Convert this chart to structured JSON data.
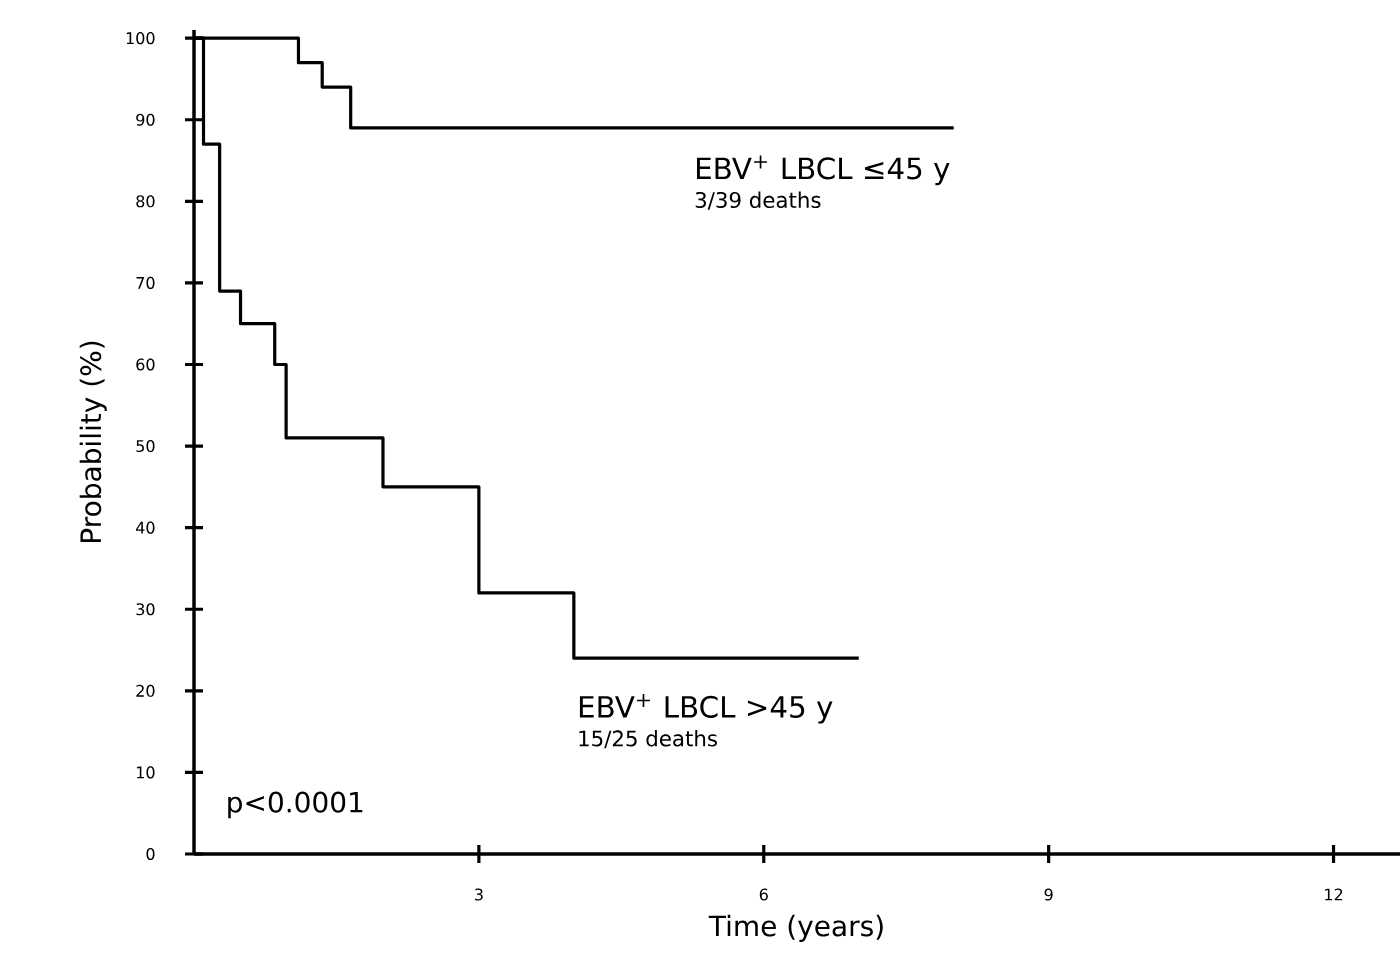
{
  "chart_data": {
    "type": "step",
    "xlabel": "Time (years)",
    "ylabel": "Probability (%)",
    "xlim": [
      0,
      12.7
    ],
    "ylim": [
      0,
      101
    ],
    "xticks": [
      3,
      6,
      9,
      12
    ],
    "yticks": [
      0,
      10,
      20,
      30,
      40,
      50,
      60,
      70,
      80,
      90,
      100
    ],
    "series": [
      {
        "name": "EBV$^{+}$ LBCL ≤45 y",
        "color": "#000000",
        "x": [
          0,
          1.1,
          1.35,
          1.65,
          8.0
        ],
        "values": [
          100,
          97,
          94,
          89,
          89
        ]
      },
      {
        "name": "EBV$^{+}$ LBCL >45 y",
        "color": "#000000",
        "x": [
          0,
          0.1,
          0.27,
          0.49,
          0.85,
          0.97,
          1.99,
          3.0,
          4.0,
          7.0
        ],
        "values": [
          100,
          87,
          69,
          65,
          60,
          51,
          45,
          32,
          24,
          24
        ]
      }
    ],
    "annotations": [
      "3/39 deaths",
      "15/25 deaths",
      "p<0.0001"
    ],
    "grid": false
  }
}
